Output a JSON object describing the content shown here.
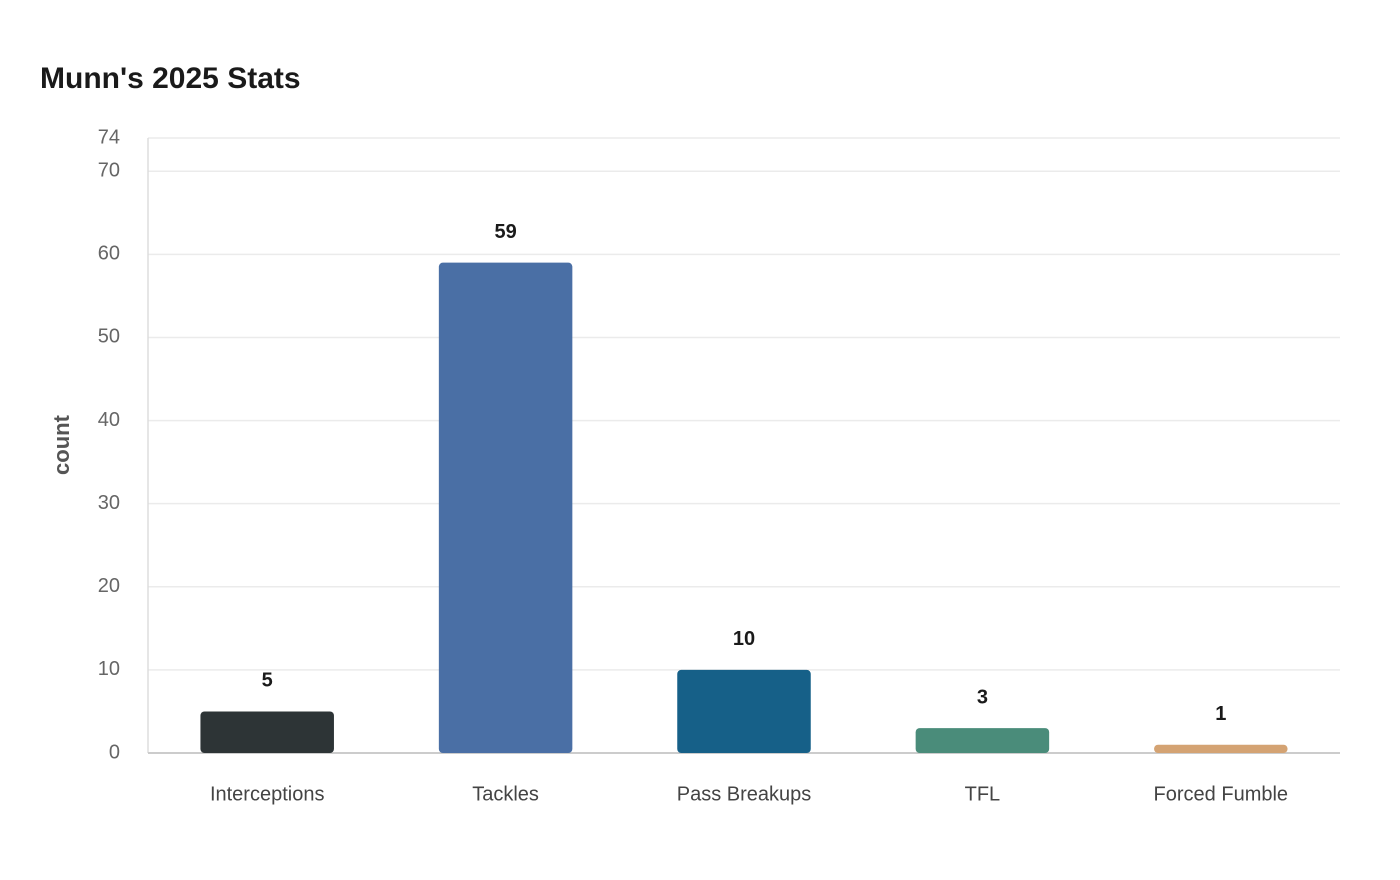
{
  "chart_data": {
    "type": "bar",
    "title": "Munn's 2025 Stats",
    "y_label": "count",
    "categories": [
      "Interceptions",
      "Tackles",
      "Pass Breakups",
      "TFL",
      "Forced Fumble"
    ],
    "values": [
      5,
      59,
      10,
      3,
      1
    ],
    "colors": [
      "#2d3436",
      "#4a6fa5",
      "#166088",
      "#4a8c7a",
      "#d4a373"
    ],
    "ylim": [
      0,
      74
    ],
    "yticks": [
      0,
      10,
      20,
      30,
      40,
      50,
      60,
      70,
      74
    ],
    "grid": true
  }
}
